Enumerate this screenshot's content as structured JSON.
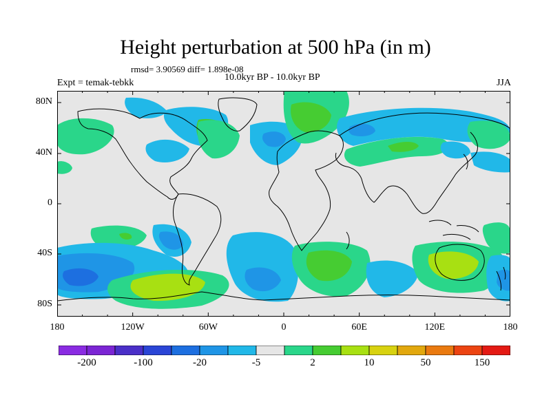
{
  "title": "Height perturbation at 500 hPa (in m)",
  "stats_line": "rmsd= 3.90569 diff= 1.898e-08",
  "period_line": "10.0kyr BP - 10.0kyr BP",
  "experiment": "Expt = temak-tebkk",
  "season": "JJA",
  "lat_labels": [
    "80N",
    "40N",
    "0",
    "40S",
    "80S"
  ],
  "lon_labels": [
    "180",
    "120W",
    "60W",
    "0",
    "60E",
    "120E",
    "180"
  ],
  "colorbar": {
    "colors": [
      "#8a2be2",
      "#7b25d4",
      "#4a2fc8",
      "#2a45d6",
      "#1d6fe0",
      "#1f95e6",
      "#21b8e8",
      "#e6e6e6",
      "#2ad68a",
      "#46cc32",
      "#a8e012",
      "#d8d210",
      "#e2a80e",
      "#ea7a10",
      "#ec4412",
      "#e41a14"
    ],
    "labels": [
      "-200",
      "-100",
      "-20",
      "-5",
      "2",
      "10",
      "50",
      "150"
    ]
  },
  "palette": {
    "land_bg": "#e6e6e6",
    "light_blue": "#21b8e8",
    "mid_blue": "#1f95e6",
    "dark_blue": "#1d6fe0",
    "teal_green": "#2ad68a",
    "green": "#46cc32",
    "yellow_green": "#a8e012",
    "coastline": "#000000"
  }
}
